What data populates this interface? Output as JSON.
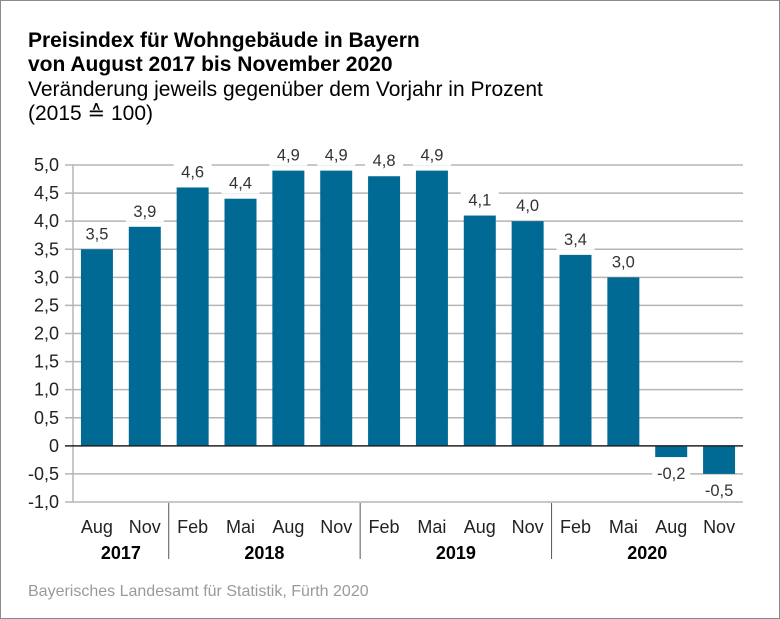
{
  "chart_data": {
    "type": "bar",
    "title": "Preisindex für Wohngebäude in Bayern",
    "title_line2": "von August 2017 bis November 2020",
    "subtitle": "Veränderung jeweils gegenüber dem Vorjahr in Prozent",
    "subtitle_line2": "(2015 ≙ 100)",
    "xlabel": "",
    "ylabel": "",
    "ylim": [
      -1.0,
      5.0
    ],
    "yticks": [
      5.0,
      4.5,
      4.0,
      3.5,
      3.0,
      2.5,
      2.0,
      1.5,
      1.0,
      0.5,
      0,
      -0.5,
      -1.0
    ],
    "ytick_labels": [
      "5,0",
      "4,5",
      "4,0",
      "3,5",
      "3,0",
      "2,5",
      "2,0",
      "1,5",
      "1,0",
      "0,5",
      "0",
      "-0,5",
      "-1,0"
    ],
    "grid": true,
    "categories": [
      "Aug",
      "Nov",
      "Feb",
      "Mai",
      "Aug",
      "Nov",
      "Feb",
      "Mai",
      "Aug",
      "Nov",
      "Feb",
      "Mai",
      "Aug",
      "Nov"
    ],
    "years": [
      {
        "label": "2017",
        "count": 2
      },
      {
        "label": "2018",
        "count": 4
      },
      {
        "label": "2019",
        "count": 4
      },
      {
        "label": "2020",
        "count": 4
      }
    ],
    "values": [
      3.5,
      3.9,
      4.6,
      4.4,
      4.9,
      4.9,
      4.8,
      4.9,
      4.1,
      4.0,
      3.4,
      3.0,
      -0.2,
      -0.5
    ],
    "value_labels": [
      "3,5",
      "3,9",
      "4,6",
      "4,4",
      "4,9",
      "4,9",
      "4,8",
      "4,9",
      "4,1",
      "4,0",
      "3,4",
      "3,0",
      "-0,2",
      "-0,5"
    ],
    "bar_color": "#006a95",
    "source": "Bayerisches Landesamt für Statistik, Fürth 2020"
  }
}
